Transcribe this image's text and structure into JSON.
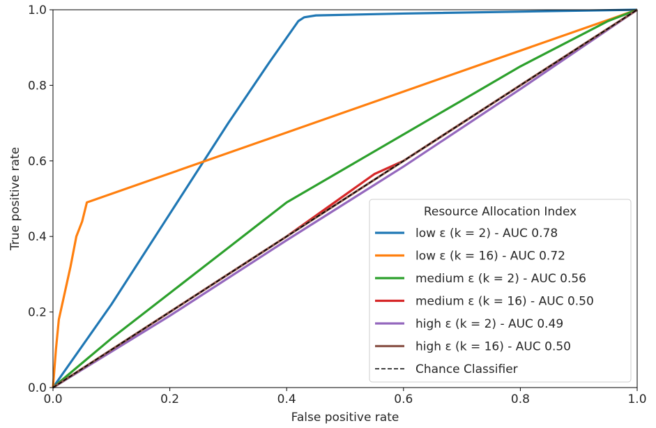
{
  "chart_data": {
    "type": "line",
    "title": "",
    "xlabel": "False positive rate",
    "ylabel": "True positive rate",
    "xlim": [
      0.0,
      1.0
    ],
    "ylim": [
      0.0,
      1.0
    ],
    "xticks": [
      "0.0",
      "0.2",
      "0.4",
      "0.6",
      "0.8",
      "1.0"
    ],
    "yticks": [
      "0.0",
      "0.2",
      "0.4",
      "0.6",
      "0.8",
      "1.0"
    ],
    "grid": false,
    "legend_title": "Resource Allocation Index",
    "legend_position": "lower-right",
    "series": [
      {
        "name": "low ε (k = 2) - AUC 0.78",
        "color": "#1f77b4",
        "style": "solid",
        "x": [
          0.0,
          0.1,
          0.2,
          0.3,
          0.37,
          0.42,
          0.43,
          0.45,
          0.6,
          1.0
        ],
        "y": [
          0.0,
          0.22,
          0.46,
          0.7,
          0.86,
          0.97,
          0.98,
          0.985,
          0.99,
          1.0
        ]
      },
      {
        "name": "low ε (k = 16) - AUC 0.72",
        "color": "#ff7f0e",
        "style": "solid",
        "x": [
          0.0,
          0.005,
          0.01,
          0.02,
          0.03,
          0.04,
          0.05,
          0.058,
          1.0
        ],
        "y": [
          0.0,
          0.1,
          0.18,
          0.25,
          0.32,
          0.4,
          0.44,
          0.49,
          1.0
        ]
      },
      {
        "name": "medium ε (k = 2) - AUC 0.56",
        "color": "#2ca02c",
        "style": "solid",
        "x": [
          0.0,
          0.1,
          0.2,
          0.3,
          0.4,
          0.5,
          0.6,
          0.7,
          0.8,
          0.9,
          0.95,
          1.0
        ],
        "y": [
          0.0,
          0.13,
          0.25,
          0.37,
          0.49,
          0.58,
          0.67,
          0.76,
          0.85,
          0.93,
          0.97,
          1.0
        ]
      },
      {
        "name": "medium ε (k = 16) - AUC 0.50",
        "color": "#d62728",
        "style": "solid",
        "x": [
          0.0,
          0.2,
          0.4,
          0.55,
          0.6,
          0.8,
          1.0
        ],
        "y": [
          0.0,
          0.2,
          0.4,
          0.565,
          0.6,
          0.8,
          1.0
        ]
      },
      {
        "name": "high ε (k = 2) - AUC 0.49",
        "color": "#9467bd",
        "style": "solid",
        "x": [
          0.0,
          0.2,
          0.4,
          0.6,
          0.8,
          1.0
        ],
        "y": [
          0.0,
          0.19,
          0.39,
          0.585,
          0.79,
          1.0
        ]
      },
      {
        "name": "high ε (k = 16) - AUC 0.50",
        "color": "#8c564b",
        "style": "solid",
        "x": [
          0.0,
          0.2,
          0.4,
          0.6,
          0.8,
          1.0
        ],
        "y": [
          0.0,
          0.2,
          0.4,
          0.6,
          0.8,
          1.0
        ]
      },
      {
        "name": "Chance Classifier",
        "color": "#000000",
        "style": "dashed",
        "x": [
          0.0,
          1.0
        ],
        "y": [
          0.0,
          1.0
        ]
      }
    ]
  }
}
